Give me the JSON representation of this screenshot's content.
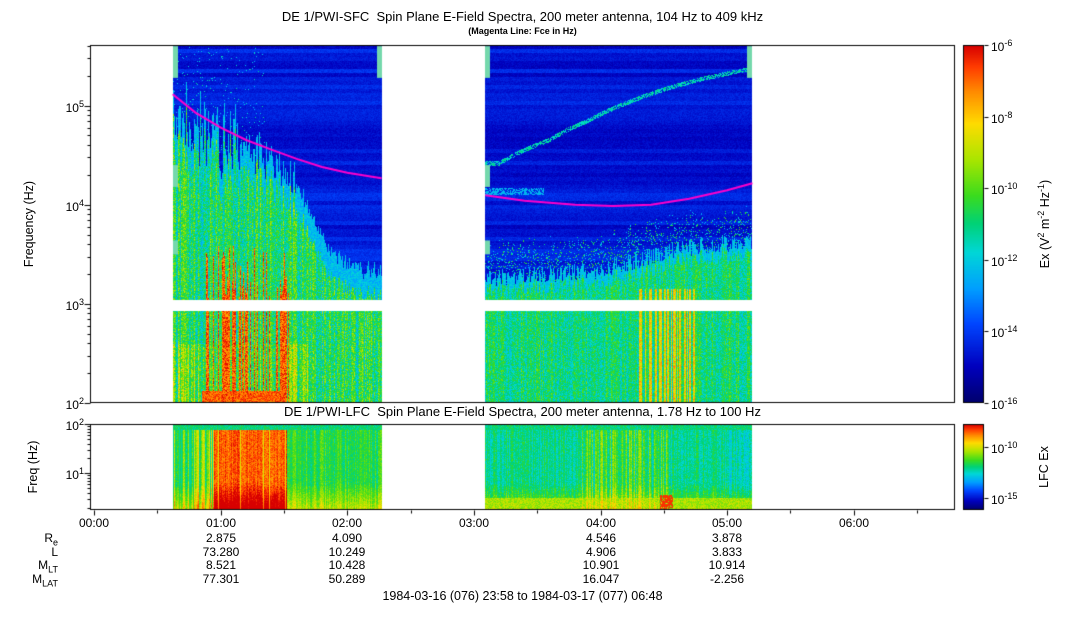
{
  "page": {
    "background": "#ffffff"
  },
  "chart_data": [
    {
      "type": "heatmap",
      "name": "sfc-spectrogram",
      "title": "DE 1/PWI-SFC  Spin Plane E-Field Spectra, 200 meter antenna, 104 Hz to 409 kHz",
      "subtitle": "(Magenta Line: Fce in Hz)",
      "ylabel": "Frequency (Hz)",
      "y_scale": "log",
      "ylim_hz": [
        100,
        409000
      ],
      "x_time_range": [
        "23:58",
        "06:48"
      ],
      "x_hours_range": [
        -0.033,
        6.8
      ],
      "xticks": [
        {
          "hour": 0,
          "label": "00:00"
        },
        {
          "hour": 1,
          "label": "01:00"
        },
        {
          "hour": 2,
          "label": "02:00"
        },
        {
          "hour": 3,
          "label": "03:00"
        },
        {
          "hour": 4,
          "label": "04:00"
        },
        {
          "hour": 5,
          "label": "05:00"
        },
        {
          "hour": 6,
          "label": "06:00"
        }
      ],
      "ytick_exponents": [
        2,
        3,
        4,
        5
      ],
      "colorbar": {
        "label_parts": [
          {
            "t": "Ex (V"
          },
          {
            "sup": "2"
          },
          {
            "t": " m"
          },
          {
            "sup": "-2"
          },
          {
            "t": " Hz"
          },
          {
            "sup": "-1"
          },
          {
            "t": ")"
          }
        ],
        "tick_exponents": [
          -6,
          -8,
          -10,
          -12,
          -14,
          -16
        ],
        "range_exponents": [
          -6,
          -16
        ]
      },
      "data_segments_hours": [
        [
          0.62,
          2.27
        ],
        [
          3.09,
          5.2
        ]
      ],
      "receiver_gap_band_hz": [
        850,
        1090
      ],
      "fce_line": {
        "color": "#ff00cc",
        "segments_hz": [
          [
            [
              0.62,
              130000
            ],
            [
              0.8,
              85000
            ],
            [
              1.0,
              60000
            ],
            [
              1.2,
              45000
            ],
            [
              1.4,
              36000
            ],
            [
              1.6,
              29000
            ],
            [
              1.8,
              24000
            ],
            [
              2.0,
              21000
            ],
            [
              2.27,
              18500
            ]
          ],
          [
            [
              3.09,
              12500
            ],
            [
              3.4,
              11000
            ],
            [
              3.8,
              10000
            ],
            [
              4.1,
              9700
            ],
            [
              4.4,
              10000
            ],
            [
              4.7,
              11500
            ],
            [
              5.0,
              14000
            ],
            [
              5.2,
              16500
            ]
          ]
        ]
      },
      "emission_upper_bound_hz": {
        "seg1": [
          [
            0.62,
            90000
          ],
          [
            0.75,
            63000
          ],
          [
            0.95,
            45000
          ],
          [
            1.15,
            40000
          ],
          [
            1.35,
            32000
          ],
          [
            1.55,
            20000
          ],
          [
            1.7,
            8000
          ],
          [
            1.85,
            3500
          ],
          [
            2.0,
            2500
          ],
          [
            2.27,
            2000
          ]
        ],
        "seg2": [
          [
            3.09,
            1800
          ],
          [
            3.6,
            2000
          ],
          [
            4.0,
            2200
          ],
          [
            4.3,
            2800
          ],
          [
            4.6,
            3500
          ],
          [
            4.9,
            4000
          ],
          [
            5.2,
            4200
          ]
        ]
      },
      "uhr_trace_hz": [
        [
          3.2,
          26000
        ],
        [
          3.6,
          45000
        ],
        [
          3.9,
          70000
        ],
        [
          4.2,
          105000
        ],
        [
          4.5,
          145000
        ],
        [
          4.8,
          185000
        ],
        [
          5.2,
          235000
        ]
      ],
      "intensity_units": "V^2 m^-2 Hz^-1"
    },
    {
      "type": "heatmap",
      "name": "lfc-spectrogram",
      "title": "DE 1/PWI-LFC  Spin Plane E-Field Spectra, 200 meter antenna, 1.78 Hz to 100 Hz",
      "ylabel": "Freq (Hz)",
      "y_scale": "log",
      "ylim_hz": [
        1.78,
        100
      ],
      "ytick_exponents": [
        1,
        2
      ],
      "colorbar": {
        "label": "LFC Ex",
        "tick_exponents": [
          -10,
          -15
        ],
        "range_exponents": [
          -7.7,
          -16.2
        ]
      },
      "data_segments_hours": [
        [
          0.62,
          2.27
        ],
        [
          3.09,
          5.2
        ]
      ]
    }
  ],
  "annotations": {
    "column_hours": [
      1,
      2,
      4,
      5
    ],
    "rows": [
      {
        "label": "R",
        "sub": "e",
        "values": [
          "2.875",
          "4.090",
          "4.546",
          "3.878"
        ]
      },
      {
        "label": "L",
        "sub": "",
        "values": [
          "73.280",
          "10.249",
          "4.906",
          "3.833"
        ]
      },
      {
        "label": "M",
        "sub": "LT",
        "values": [
          "8.521",
          "10.428",
          "10.901",
          "10.914"
        ]
      },
      {
        "label": "M",
        "sub": "LAT",
        "values": [
          "77.301",
          "50.289",
          "16.047",
          "-2.256"
        ]
      }
    ]
  },
  "footer": {
    "date_range": "1984-03-16 (076) 23:58 to 1984-03-17 (077) 06:48"
  }
}
